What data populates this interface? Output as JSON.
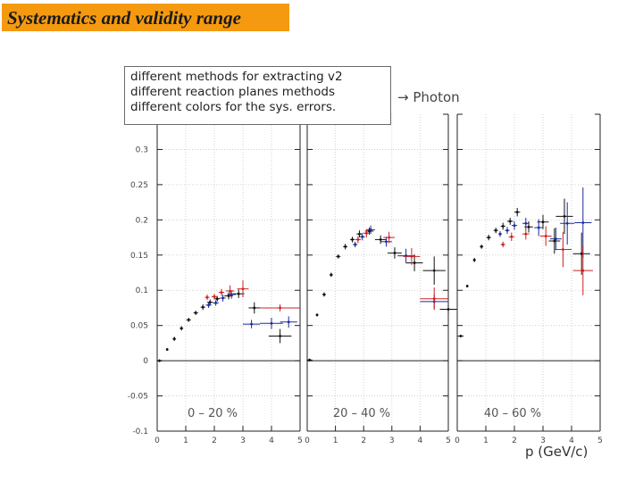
{
  "slide": {
    "title": "Systematics and validity range",
    "notes": [
      "different methods for extracting v2",
      "different reaction planes methods",
      "different colors for the sys. errors."
    ],
    "photon_label": "→ Photon",
    "x_unit_label": "p (GeV/c)"
  },
  "chart_data": {
    "type": "scatter",
    "ylim": [
      -0.1,
      0.35
    ],
    "yticks": [
      "0.3",
      "0.25",
      "0.2",
      "0.15",
      "0.1",
      "0.05",
      "0",
      "-0.05",
      "-0.1"
    ],
    "grid": true,
    "panels": [
      {
        "centrality_label": "0 – 20 %",
        "xlim": [
          0,
          5
        ],
        "xticks": [
          "0",
          "1",
          "2",
          "3",
          "4",
          "5"
        ],
        "series": [
          {
            "color": "#111111",
            "points": [
              [
                0.08,
                0.0,
                0.1,
                0.002
              ],
              [
                0.35,
                0.016,
                0.04,
                0.002
              ],
              [
                0.6,
                0.031,
                0.06,
                0.003
              ],
              [
                0.85,
                0.046,
                0.06,
                0.003
              ],
              [
                1.1,
                0.058,
                0.08,
                0.003
              ],
              [
                1.35,
                0.068,
                0.08,
                0.003
              ],
              [
                1.6,
                0.076,
                0.08,
                0.004
              ],
              [
                1.85,
                0.083,
                0.1,
                0.004
              ],
              [
                2.1,
                0.088,
                0.1,
                0.004
              ],
              [
                2.5,
                0.092,
                0.15,
                0.005
              ],
              [
                2.85,
                0.095,
                0.2,
                0.006
              ],
              [
                3.4,
                0.075,
                0.2,
                0.008
              ],
              [
                4.3,
                0.035,
                0.4,
                0.01
              ]
            ]
          },
          {
            "color": "#1a2a9a",
            "points": [
              [
                1.8,
                0.079,
                0.1,
                0.004
              ],
              [
                2.05,
                0.082,
                0.1,
                0.004
              ],
              [
                2.3,
                0.089,
                0.1,
                0.005
              ],
              [
                2.6,
                0.094,
                0.15,
                0.006
              ],
              [
                3.3,
                0.052,
                0.3,
                0.006
              ],
              [
                4.0,
                0.053,
                0.4,
                0.008
              ],
              [
                4.6,
                0.055,
                0.3,
                0.008
              ]
            ]
          },
          {
            "color": "#cc2020",
            "points": [
              [
                1.75,
                0.09,
                0.08,
                0.004
              ],
              [
                2.0,
                0.091,
                0.1,
                0.004
              ],
              [
                2.25,
                0.097,
                0.1,
                0.005
              ],
              [
                2.55,
                0.099,
                0.15,
                0.008
              ],
              [
                3.0,
                0.102,
                0.2,
                0.012
              ],
              [
                4.3,
                0.075,
                0.7,
                0.005
              ]
            ]
          }
        ]
      },
      {
        "centrality_label": "20 – 40 %",
        "xlim": [
          0,
          5
        ],
        "xticks": [
          "0",
          "1",
          "2",
          "3",
          "4",
          "5"
        ],
        "series": [
          {
            "color": "#111111",
            "points": [
              [
                0.08,
                0.001,
                0.1,
                0.002
              ],
              [
                0.35,
                0.065,
                0.04,
                0.002
              ],
              [
                0.6,
                0.094,
                0.06,
                0.003
              ],
              [
                0.85,
                0.122,
                0.06,
                0.003
              ],
              [
                1.1,
                0.148,
                0.08,
                0.003
              ],
              [
                1.35,
                0.162,
                0.08,
                0.004
              ],
              [
                1.6,
                0.172,
                0.08,
                0.004
              ],
              [
                1.85,
                0.18,
                0.1,
                0.005
              ],
              [
                2.2,
                0.184,
                0.15,
                0.005
              ],
              [
                2.6,
                0.172,
                0.2,
                0.006
              ],
              [
                3.1,
                0.153,
                0.25,
                0.008
              ],
              [
                3.8,
                0.139,
                0.3,
                0.012
              ],
              [
                4.5,
                0.128,
                0.4,
                0.02
              ],
              [
                5.0,
                0.073,
                0.3,
                0.006
              ]
            ]
          },
          {
            "color": "#1a2a9a",
            "points": [
              [
                1.7,
                0.165,
                0.08,
                0.004
              ],
              [
                1.95,
                0.176,
                0.1,
                0.005
              ],
              [
                2.25,
                0.186,
                0.15,
                0.006
              ],
              [
                2.8,
                0.169,
                0.2,
                0.007
              ],
              [
                3.5,
                0.149,
                0.3,
                0.01
              ],
              [
                4.5,
                0.084,
                0.5,
                0.01
              ]
            ]
          },
          {
            "color": "#cc2020",
            "points": [
              [
                1.8,
                0.172,
                0.1,
                0.005
              ],
              [
                2.1,
                0.181,
                0.12,
                0.006
              ],
              [
                2.9,
                0.175,
                0.2,
                0.008
              ],
              [
                3.7,
                0.148,
                0.3,
                0.012
              ],
              [
                4.5,
                0.088,
                0.5,
                0.016
              ]
            ]
          }
        ]
      },
      {
        "centrality_label": "40 – 60 %",
        "xlim": [
          0,
          5
        ],
        "xticks": [
          "0",
          "1",
          "2",
          "3",
          "4",
          "5"
        ],
        "series": [
          {
            "color": "#111111",
            "points": [
              [
                0.12,
                0.035,
                0.1,
                0.002
              ],
              [
                0.35,
                0.106,
                0.04,
                0.002
              ],
              [
                0.6,
                0.143,
                0.05,
                0.003
              ],
              [
                0.85,
                0.162,
                0.06,
                0.003
              ],
              [
                1.1,
                0.175,
                0.08,
                0.004
              ],
              [
                1.35,
                0.185,
                0.08,
                0.004
              ],
              [
                1.6,
                0.191,
                0.08,
                0.005
              ],
              [
                1.85,
                0.198,
                0.1,
                0.005
              ],
              [
                2.1,
                0.211,
                0.1,
                0.006
              ],
              [
                2.5,
                0.19,
                0.15,
                0.008
              ],
              [
                3.0,
                0.197,
                0.2,
                0.01
              ],
              [
                3.4,
                0.17,
                0.2,
                0.018
              ],
              [
                3.75,
                0.205,
                0.3,
                0.025
              ],
              [
                4.35,
                0.152,
                0.3,
                0.03
              ]
            ]
          },
          {
            "color": "#1a2a9a",
            "points": [
              [
                1.5,
                0.18,
                0.06,
                0.004
              ],
              [
                1.75,
                0.185,
                0.08,
                0.005
              ],
              [
                2.0,
                0.192,
                0.1,
                0.006
              ],
              [
                2.4,
                0.195,
                0.12,
                0.008
              ],
              [
                2.85,
                0.189,
                0.15,
                0.012
              ],
              [
                3.45,
                0.173,
                0.2,
                0.016
              ],
              [
                3.85,
                0.195,
                0.25,
                0.03
              ],
              [
                4.4,
                0.196,
                0.3,
                0.05
              ]
            ]
          },
          {
            "color": "#cc2020",
            "points": [
              [
                1.6,
                0.165,
                0.08,
                0.004
              ],
              [
                1.9,
                0.176,
                0.1,
                0.006
              ],
              [
                2.4,
                0.18,
                0.12,
                0.008
              ],
              [
                3.1,
                0.177,
                0.2,
                0.014
              ],
              [
                3.7,
                0.158,
                0.3,
                0.025
              ],
              [
                4.4,
                0.128,
                0.35,
                0.035
              ]
            ]
          }
        ]
      }
    ]
  }
}
